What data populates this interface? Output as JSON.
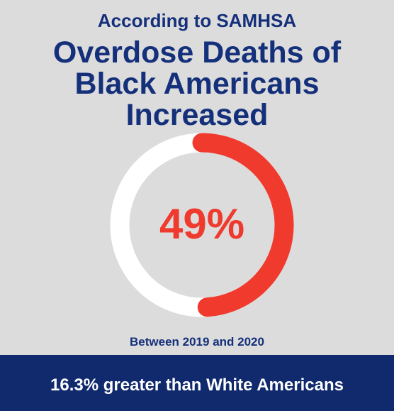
{
  "header": {
    "subtitle": "According to SAMHSA",
    "title_lines": [
      "Overdose Deaths of",
      "Black Americans",
      "Increased"
    ]
  },
  "chart_data": {
    "type": "pie",
    "style": "donut",
    "value": 49,
    "value_label": "49%",
    "caption": "Between 2019 and 2020",
    "colors": {
      "filled": "#ef3a2d",
      "track": "#ffffff",
      "label": "#ef3a2d"
    }
  },
  "footer": {
    "text": "16.3% greater than White Americans"
  },
  "colors": {
    "background": "#dcdcdc",
    "navy": "#15307a",
    "banner": "#102a6d"
  }
}
